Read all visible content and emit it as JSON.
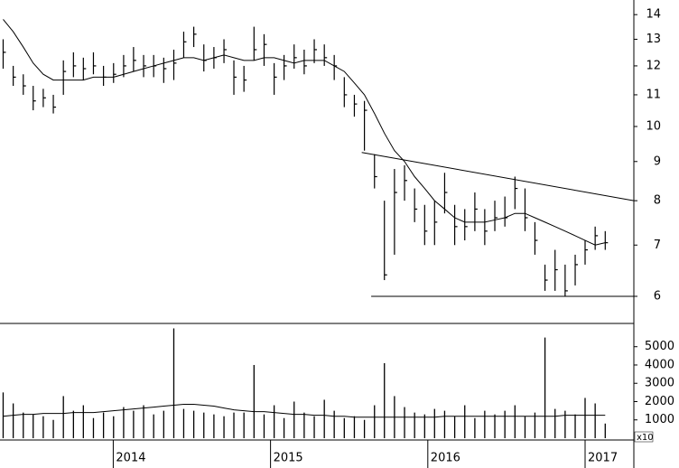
{
  "chart_data": [
    {
      "type": "ohlc",
      "log_scale": true,
      "color": "#000000",
      "x": [
        2013.3,
        2013.364,
        2013.428,
        2013.491,
        2013.555,
        2013.619,
        2013.683,
        2013.747,
        2013.81,
        2013.874,
        2013.938,
        2014.002,
        2014.066,
        2014.129,
        2014.193,
        2014.257,
        2014.321,
        2014.385,
        2014.448,
        2014.512,
        2014.576,
        2014.64,
        2014.704,
        2014.767,
        2014.831,
        2014.895,
        2014.959,
        2015.023,
        2015.086,
        2015.15,
        2015.214,
        2015.278,
        2015.342,
        2015.405,
        2015.469,
        2015.533,
        2015.597,
        2015.661,
        2015.724,
        2015.788,
        2015.852,
        2015.916,
        2015.98,
        2016.043,
        2016.107,
        2016.171,
        2016.235,
        2016.299,
        2016.362,
        2016.426,
        2016.49,
        2016.554,
        2016.618,
        2016.681,
        2016.745,
        2016.809,
        2016.873,
        2016.937,
        2017.0,
        2017.064,
        2017.128
      ],
      "high": [
        13.0,
        12.0,
        11.7,
        11.3,
        11.2,
        11.0,
        12.2,
        12.5,
        12.3,
        12.5,
        12.0,
        12.1,
        12.4,
        12.7,
        12.4,
        12.4,
        12.3,
        12.6,
        13.3,
        13.5,
        12.8,
        12.7,
        13.0,
        12.2,
        12.0,
        13.5,
        13.2,
        12.1,
        12.4,
        12.8,
        12.6,
        13.0,
        12.8,
        12.4,
        11.6,
        11.0,
        10.8,
        9.2,
        8.0,
        8.8,
        8.9,
        8.3,
        7.9,
        8.0,
        8.7,
        7.9,
        7.8,
        8.2,
        7.8,
        8.0,
        8.1,
        8.6,
        8.3,
        7.5,
        6.6,
        6.9,
        6.6,
        6.8,
        7.1,
        7.4,
        7.3
      ],
      "low": [
        11.9,
        11.3,
        11.0,
        10.5,
        10.6,
        10.4,
        11.0,
        11.6,
        11.5,
        11.7,
        11.3,
        11.4,
        11.6,
        11.8,
        11.6,
        11.6,
        11.4,
        11.5,
        12.3,
        12.7,
        11.8,
        11.9,
        12.1,
        11.0,
        11.1,
        12.2,
        12.0,
        11.0,
        11.5,
        11.9,
        11.7,
        12.1,
        12.0,
        11.5,
        10.6,
        10.3,
        9.3,
        8.3,
        6.3,
        6.8,
        8.0,
        7.5,
        7.0,
        7.0,
        7.7,
        7.0,
        7.1,
        7.3,
        7.0,
        7.3,
        7.4,
        7.8,
        7.3,
        6.8,
        6.1,
        6.1,
        6.0,
        6.2,
        6.6,
        6.9,
        6.9
      ],
      "close": [
        12.5,
        11.6,
        11.3,
        10.8,
        10.9,
        10.6,
        11.8,
        12.0,
        11.9,
        12.0,
        11.6,
        11.7,
        12.0,
        12.2,
        12.0,
        12.0,
        11.9,
        12.1,
        12.9,
        13.2,
        12.2,
        12.3,
        12.6,
        11.6,
        11.5,
        12.6,
        12.8,
        11.6,
        12.0,
        12.3,
        12.0,
        12.6,
        12.3,
        12.0,
        11.0,
        10.7,
        10.5,
        8.6,
        6.4,
        8.2,
        8.5,
        7.8,
        7.3,
        7.5,
        8.2,
        7.4,
        7.4,
        7.8,
        7.3,
        7.6,
        7.6,
        8.3,
        7.6,
        7.1,
        6.3,
        6.5,
        6.1,
        6.6,
        6.9,
        7.2,
        7.05
      ],
      "moving_average": [
        13.8,
        13.3,
        12.7,
        12.1,
        11.7,
        11.5,
        11.5,
        11.5,
        11.5,
        11.6,
        11.6,
        11.6,
        11.7,
        11.8,
        11.9,
        12.0,
        12.1,
        12.2,
        12.3,
        12.3,
        12.2,
        12.3,
        12.4,
        12.3,
        12.2,
        12.2,
        12.3,
        12.3,
        12.2,
        12.1,
        12.2,
        12.2,
        12.2,
        12.0,
        11.8,
        11.4,
        11.0,
        10.4,
        9.8,
        9.3,
        9.0,
        8.6,
        8.3,
        8.0,
        7.8,
        7.6,
        7.5,
        7.5,
        7.5,
        7.55,
        7.6,
        7.7,
        7.7,
        7.6,
        7.5,
        7.4,
        7.3,
        7.2,
        7.1,
        7.0,
        7.05
      ],
      "trend_lines": [
        {
          "x": [
            2015.58,
            2017.31
          ],
          "y": [
            9.25,
            8.0
          ]
        },
        {
          "x": [
            2015.64,
            2017.31
          ],
          "y": [
            6.0,
            6.0
          ]
        }
      ],
      "xlim": [
        2013.28,
        2017.31
      ],
      "ylim": [
        5.53,
        14.63
      ],
      "yticks": [
        6,
        7,
        8,
        9,
        10,
        11,
        12,
        13,
        14
      ]
    },
    {
      "type": "bar",
      "color": "#000000",
      "unit_label": "x10",
      "x": [
        2013.3,
        2013.364,
        2013.428,
        2013.491,
        2013.555,
        2013.619,
        2013.683,
        2013.747,
        2013.81,
        2013.874,
        2013.938,
        2014.002,
        2014.066,
        2014.129,
        2014.193,
        2014.257,
        2014.321,
        2014.385,
        2014.448,
        2014.512,
        2014.576,
        2014.64,
        2014.704,
        2014.767,
        2014.831,
        2014.895,
        2014.959,
        2015.023,
        2015.086,
        2015.15,
        2015.214,
        2015.278,
        2015.342,
        2015.405,
        2015.469,
        2015.533,
        2015.597,
        2015.661,
        2015.724,
        2015.788,
        2015.852,
        2015.916,
        2015.98,
        2016.043,
        2016.107,
        2016.171,
        2016.235,
        2016.299,
        2016.362,
        2016.426,
        2016.49,
        2016.554,
        2016.618,
        2016.681,
        2016.745,
        2016.809,
        2016.873,
        2016.937,
        2017.0,
        2017.064,
        2017.128
      ],
      "values": [
        2500,
        1900,
        1400,
        1300,
        1200,
        1000,
        2300,
        1500,
        1800,
        1100,
        1400,
        1200,
        1700,
        1500,
        1800,
        1300,
        1500,
        6000,
        1600,
        1500,
        1400,
        1300,
        1200,
        1400,
        1400,
        4000,
        1300,
        1800,
        1100,
        2000,
        1400,
        1200,
        2100,
        1500,
        1100,
        1200,
        1000,
        1800,
        4100,
        2300,
        1700,
        1400,
        1300,
        1600,
        1500,
        1200,
        1800,
        1100,
        1500,
        1300,
        1500,
        1800,
        1200,
        1400,
        5500,
        1600,
        1500,
        1300,
        2200,
        1900,
        800
      ],
      "moving_average": [
        1200,
        1250,
        1300,
        1300,
        1350,
        1350,
        1350,
        1400,
        1400,
        1400,
        1450,
        1500,
        1550,
        1600,
        1650,
        1700,
        1750,
        1800,
        1850,
        1850,
        1800,
        1750,
        1650,
        1550,
        1500,
        1450,
        1450,
        1400,
        1350,
        1300,
        1300,
        1250,
        1250,
        1200,
        1200,
        1150,
        1150,
        1150,
        1150,
        1150,
        1150,
        1150,
        1150,
        1150,
        1200,
        1200,
        1200,
        1200,
        1200,
        1200,
        1200,
        1200,
        1200,
        1200,
        1200,
        1200,
        1250,
        1250,
        1250,
        1250,
        1250
      ],
      "xlim": [
        2013.28,
        2017.31
      ],
      "ylim": [
        0,
        6270
      ],
      "yticks": [
        1000,
        2000,
        3000,
        4000,
        5000
      ],
      "xticks": [
        2014,
        2015,
        2016,
        2017
      ]
    }
  ]
}
